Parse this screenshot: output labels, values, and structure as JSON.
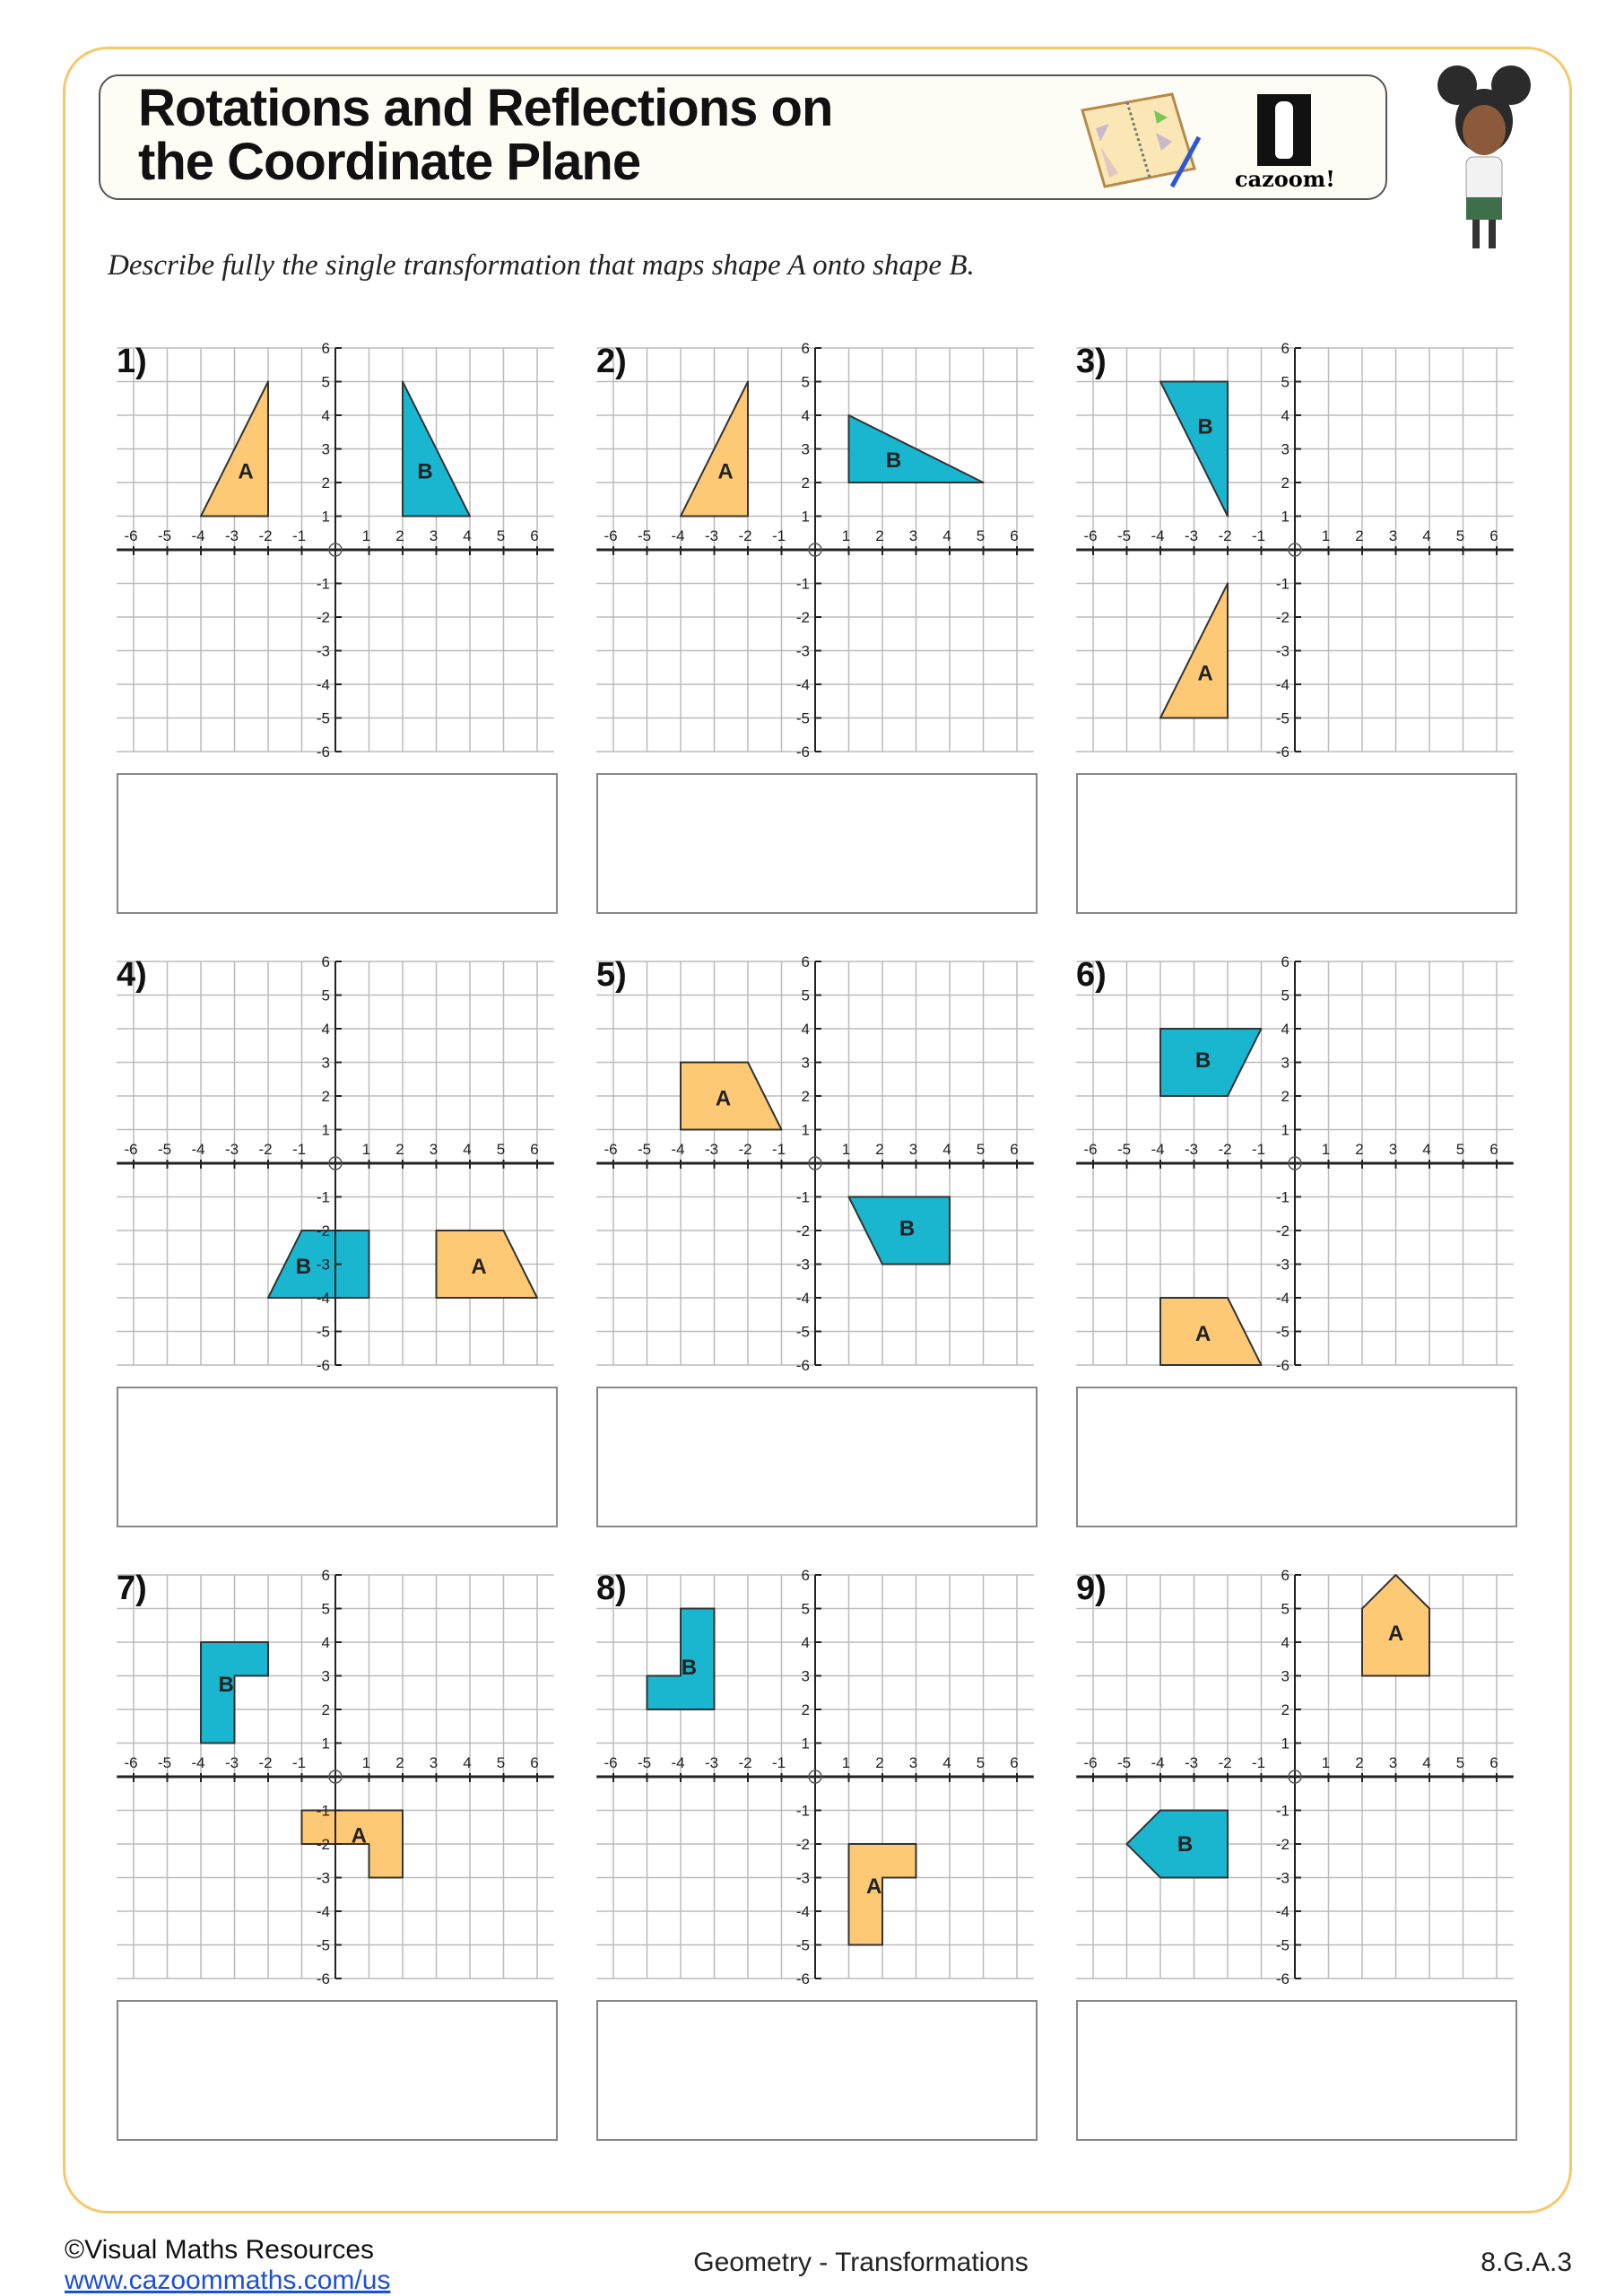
{
  "header": {
    "title_line1": "Rotations and Reflections on",
    "title_line2": "the Coordinate Plane",
    "logo_text": "cazoom!"
  },
  "instruction": "Describe fully the single transformation that maps shape A onto shape B.",
  "colors": {
    "shape_a": "#FDC974",
    "shape_b": "#1AB5CE",
    "frame": "#F5C96A",
    "grid": "#BBBBBB",
    "axis": "#222222"
  },
  "axis_ticks": [
    -6,
    -5,
    -4,
    -3,
    -2,
    -1,
    1,
    2,
    3,
    4,
    5,
    6
  ],
  "problems": [
    {
      "number": "1)",
      "A": [
        [
          -4,
          1
        ],
        [
          -2,
          1
        ],
        [
          -2,
          5
        ]
      ],
      "B": [
        [
          2,
          1
        ],
        [
          4,
          1
        ],
        [
          2,
          5
        ]
      ]
    },
    {
      "number": "2)",
      "A": [
        [
          -4,
          1
        ],
        [
          -2,
          1
        ],
        [
          -2,
          5
        ]
      ],
      "B": [
        [
          1,
          2
        ],
        [
          1,
          4
        ],
        [
          5,
          2
        ]
      ]
    },
    {
      "number": "3)",
      "A": [
        [
          -4,
          -5
        ],
        [
          -2,
          -5
        ],
        [
          -2,
          -1
        ]
      ],
      "B": [
        [
          -4,
          5
        ],
        [
          -2,
          5
        ],
        [
          -2,
          1
        ]
      ]
    },
    {
      "number": "4)",
      "A": [
        [
          3,
          -2
        ],
        [
          5,
          -2
        ],
        [
          6,
          -4
        ],
        [
          3,
          -4
        ]
      ],
      "B": [
        [
          -1,
          -2
        ],
        [
          1,
          -2
        ],
        [
          1,
          -4
        ],
        [
          -2,
          -4
        ]
      ]
    },
    {
      "number": "5)",
      "A": [
        [
          -4,
          3
        ],
        [
          -2,
          3
        ],
        [
          -1,
          1
        ],
        [
          -4,
          1
        ]
      ],
      "B": [
        [
          1,
          -1
        ],
        [
          4,
          -1
        ],
        [
          4,
          -3
        ],
        [
          2,
          -3
        ]
      ]
    },
    {
      "number": "6)",
      "A": [
        [
          -4,
          -4
        ],
        [
          -2,
          -4
        ],
        [
          -1,
          -6
        ],
        [
          -4,
          -6
        ]
      ],
      "B": [
        [
          -4,
          4
        ],
        [
          -1,
          4
        ],
        [
          -2,
          2
        ],
        [
          -4,
          2
        ]
      ]
    },
    {
      "number": "7)",
      "A": [
        [
          -1,
          -1
        ],
        [
          2,
          -1
        ],
        [
          2,
          -3
        ],
        [
          1,
          -3
        ],
        [
          1,
          -2
        ],
        [
          -1,
          -2
        ]
      ],
      "B": [
        [
          -4,
          4
        ],
        [
          -2,
          4
        ],
        [
          -2,
          3
        ],
        [
          -3,
          3
        ],
        [
          -3,
          1
        ],
        [
          -4,
          1
        ]
      ]
    },
    {
      "number": "8)",
      "A": [
        [
          1,
          -2
        ],
        [
          3,
          -2
        ],
        [
          3,
          -3
        ],
        [
          2,
          -3
        ],
        [
          2,
          -5
        ],
        [
          1,
          -5
        ]
      ],
      "B": [
        [
          -4,
          5
        ],
        [
          -3,
          5
        ],
        [
          -3,
          2
        ],
        [
          -5,
          2
        ],
        [
          -5,
          3
        ],
        [
          -4,
          3
        ]
      ]
    },
    {
      "number": "9)",
      "A": [
        [
          2,
          5
        ],
        [
          3,
          6
        ],
        [
          4,
          5
        ],
        [
          4,
          3
        ],
        [
          2,
          3
        ]
      ],
      "B": [
        [
          -5,
          -2
        ],
        [
          -4,
          -1
        ],
        [
          -2,
          -1
        ],
        [
          -2,
          -3
        ],
        [
          -4,
          -3
        ]
      ]
    }
  ],
  "shape_labels": {
    "a": "A",
    "b": "B"
  },
  "footer": {
    "copyright": "©Visual Maths Resources",
    "link": "www.cazoommaths.com/us",
    "topic": "Geometry - Transformations",
    "standard": "8.G.A.3"
  }
}
